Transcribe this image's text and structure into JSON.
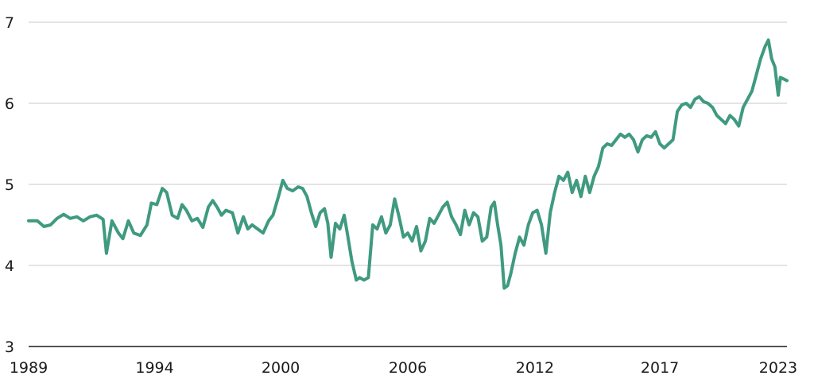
{
  "chart_data": {
    "type": "line",
    "title": "",
    "xlabel": "",
    "ylabel": "",
    "xlim": [
      1989,
      2023.6
    ],
    "ylim": [
      3,
      7
    ],
    "grid": "horizontal",
    "y_ticks": [
      "3",
      "4",
      "5",
      "6",
      "7"
    ],
    "x_ticks": [
      {
        "value": 1989,
        "label": "1989"
      },
      {
        "value": 1994.75,
        "label": "1994"
      },
      {
        "value": 2000.5,
        "label": "2000"
      },
      {
        "value": 2006.3,
        "label": "2006"
      },
      {
        "value": 2012.1,
        "label": "2012"
      },
      {
        "value": 2017.8,
        "label": "2017"
      },
      {
        "value": 2023.2,
        "label": "2023"
      }
    ],
    "series": [
      {
        "color": "#3f9a80",
        "points": [
          [
            1989.0,
            4.55
          ],
          [
            1989.4,
            4.55
          ],
          [
            1989.7,
            4.48
          ],
          [
            1990.0,
            4.5
          ],
          [
            1990.3,
            4.58
          ],
          [
            1990.6,
            4.63
          ],
          [
            1990.9,
            4.58
          ],
          [
            1991.2,
            4.6
          ],
          [
            1991.5,
            4.55
          ],
          [
            1991.8,
            4.6
          ],
          [
            1992.1,
            4.62
          ],
          [
            1992.4,
            4.57
          ],
          [
            1992.55,
            4.15
          ],
          [
            1992.8,
            4.55
          ],
          [
            1993.1,
            4.4
          ],
          [
            1993.3,
            4.33
          ],
          [
            1993.55,
            4.55
          ],
          [
            1993.8,
            4.4
          ],
          [
            1994.1,
            4.37
          ],
          [
            1994.4,
            4.5
          ],
          [
            1994.6,
            4.77
          ],
          [
            1994.85,
            4.75
          ],
          [
            1995.1,
            4.95
          ],
          [
            1995.3,
            4.9
          ],
          [
            1995.55,
            4.62
          ],
          [
            1995.8,
            4.58
          ],
          [
            1996.0,
            4.75
          ],
          [
            1996.2,
            4.68
          ],
          [
            1996.45,
            4.55
          ],
          [
            1996.7,
            4.58
          ],
          [
            1996.95,
            4.47
          ],
          [
            1997.2,
            4.72
          ],
          [
            1997.4,
            4.8
          ],
          [
            1997.6,
            4.72
          ],
          [
            1997.8,
            4.62
          ],
          [
            1998.0,
            4.68
          ],
          [
            1998.3,
            4.65
          ],
          [
            1998.55,
            4.4
          ],
          [
            1998.8,
            4.6
          ],
          [
            1999.0,
            4.45
          ],
          [
            1999.2,
            4.5
          ],
          [
            1999.45,
            4.45
          ],
          [
            1999.7,
            4.4
          ],
          [
            1999.95,
            4.55
          ],
          [
            2000.15,
            4.62
          ],
          [
            2000.4,
            4.85
          ],
          [
            2000.6,
            5.05
          ],
          [
            2000.8,
            4.95
          ],
          [
            2001.05,
            4.92
          ],
          [
            2001.3,
            4.97
          ],
          [
            2001.5,
            4.95
          ],
          [
            2001.7,
            4.85
          ],
          [
            2001.9,
            4.65
          ],
          [
            2002.1,
            4.48
          ],
          [
            2002.3,
            4.65
          ],
          [
            2002.5,
            4.7
          ],
          [
            2002.65,
            4.52
          ],
          [
            2002.8,
            4.1
          ],
          [
            2003.0,
            4.52
          ],
          [
            2003.2,
            4.45
          ],
          [
            2003.4,
            4.62
          ],
          [
            2003.55,
            4.38
          ],
          [
            2003.75,
            4.05
          ],
          [
            2003.95,
            3.82
          ],
          [
            2004.1,
            3.85
          ],
          [
            2004.3,
            3.82
          ],
          [
            2004.5,
            3.85
          ],
          [
            2004.7,
            4.5
          ],
          [
            2004.9,
            4.45
          ],
          [
            2005.1,
            4.6
          ],
          [
            2005.3,
            4.4
          ],
          [
            2005.5,
            4.5
          ],
          [
            2005.7,
            4.82
          ],
          [
            2005.9,
            4.6
          ],
          [
            2006.1,
            4.35
          ],
          [
            2006.3,
            4.4
          ],
          [
            2006.5,
            4.3
          ],
          [
            2006.7,
            4.48
          ],
          [
            2006.9,
            4.18
          ],
          [
            2007.1,
            4.3
          ],
          [
            2007.3,
            4.58
          ],
          [
            2007.5,
            4.52
          ],
          [
            2007.7,
            4.62
          ],
          [
            2007.9,
            4.72
          ],
          [
            2008.1,
            4.78
          ],
          [
            2008.3,
            4.6
          ],
          [
            2008.5,
            4.5
          ],
          [
            2008.7,
            4.38
          ],
          [
            2008.9,
            4.68
          ],
          [
            2009.1,
            4.5
          ],
          [
            2009.3,
            4.65
          ],
          [
            2009.5,
            4.6
          ],
          [
            2009.7,
            4.3
          ],
          [
            2009.9,
            4.35
          ],
          [
            2010.1,
            4.72
          ],
          [
            2010.25,
            4.78
          ],
          [
            2010.4,
            4.5
          ],
          [
            2010.55,
            4.25
          ],
          [
            2010.7,
            3.72
          ],
          [
            2010.85,
            3.75
          ],
          [
            2011.0,
            3.9
          ],
          [
            2011.2,
            4.15
          ],
          [
            2011.4,
            4.35
          ],
          [
            2011.6,
            4.25
          ],
          [
            2011.8,
            4.5
          ],
          [
            2012.0,
            4.65
          ],
          [
            2012.2,
            4.68
          ],
          [
            2012.4,
            4.5
          ],
          [
            2012.6,
            4.15
          ],
          [
            2012.8,
            4.65
          ],
          [
            2013.0,
            4.9
          ],
          [
            2013.2,
            5.1
          ],
          [
            2013.4,
            5.05
          ],
          [
            2013.6,
            5.15
          ],
          [
            2013.8,
            4.9
          ],
          [
            2014.0,
            5.05
          ],
          [
            2014.2,
            4.85
          ],
          [
            2014.4,
            5.1
          ],
          [
            2014.6,
            4.9
          ],
          [
            2014.8,
            5.1
          ],
          [
            2015.0,
            5.22
          ],
          [
            2015.2,
            5.45
          ],
          [
            2015.4,
            5.5
          ],
          [
            2015.6,
            5.48
          ],
          [
            2015.8,
            5.55
          ],
          [
            2016.0,
            5.62
          ],
          [
            2016.2,
            5.58
          ],
          [
            2016.4,
            5.62
          ],
          [
            2016.6,
            5.55
          ],
          [
            2016.8,
            5.4
          ],
          [
            2017.0,
            5.55
          ],
          [
            2017.2,
            5.6
          ],
          [
            2017.4,
            5.58
          ],
          [
            2017.6,
            5.65
          ],
          [
            2017.8,
            5.5
          ],
          [
            2018.0,
            5.45
          ],
          [
            2018.2,
            5.5
          ],
          [
            2018.4,
            5.55
          ],
          [
            2018.6,
            5.9
          ],
          [
            2018.8,
            5.98
          ],
          [
            2019.0,
            6.0
          ],
          [
            2019.2,
            5.95
          ],
          [
            2019.4,
            6.05
          ],
          [
            2019.6,
            6.08
          ],
          [
            2019.8,
            6.02
          ],
          [
            2020.0,
            6.0
          ],
          [
            2020.2,
            5.95
          ],
          [
            2020.4,
            5.85
          ],
          [
            2020.6,
            5.8
          ],
          [
            2020.8,
            5.75
          ],
          [
            2021.0,
            5.85
          ],
          [
            2021.2,
            5.8
          ],
          [
            2021.4,
            5.72
          ],
          [
            2021.6,
            5.95
          ],
          [
            2021.8,
            6.05
          ],
          [
            2022.0,
            6.15
          ],
          [
            2022.2,
            6.35
          ],
          [
            2022.4,
            6.55
          ],
          [
            2022.6,
            6.7
          ],
          [
            2022.75,
            6.78
          ],
          [
            2022.9,
            6.55
          ],
          [
            2023.05,
            6.45
          ],
          [
            2023.2,
            6.1
          ],
          [
            2023.3,
            6.32
          ],
          [
            2023.45,
            6.3
          ],
          [
            2023.6,
            6.28
          ]
        ]
      }
    ]
  }
}
